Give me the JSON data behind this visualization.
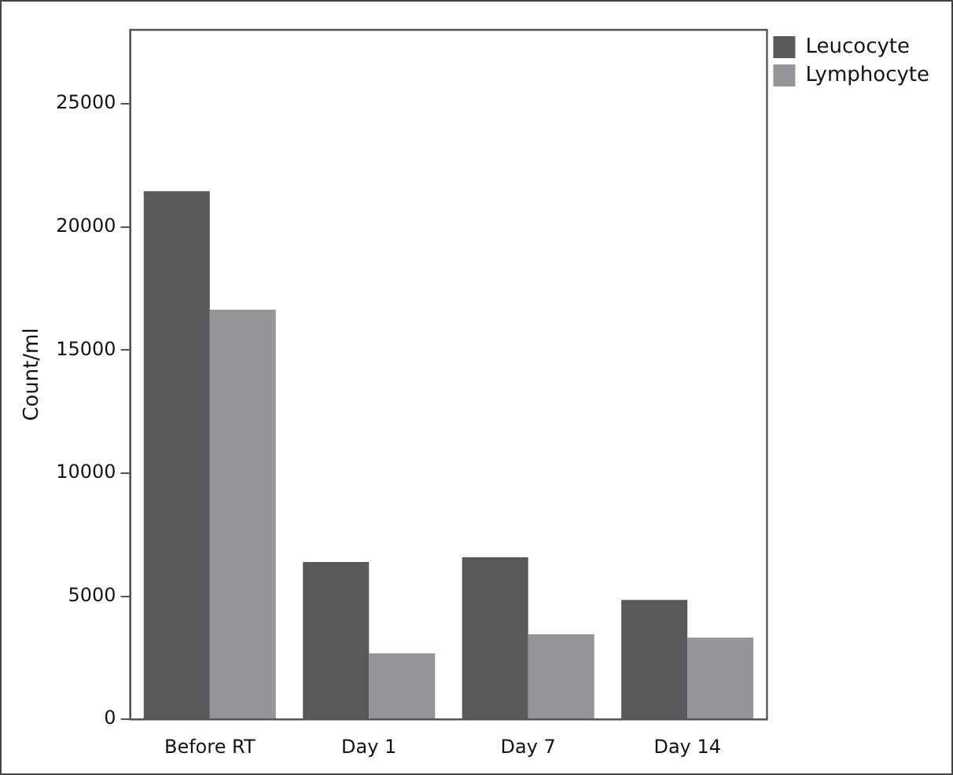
{
  "chart_data": {
    "type": "bar",
    "ylabel": "Count/ml",
    "categories": [
      "Before RT",
      "Day 1",
      "Day 7",
      "Day 14"
    ],
    "series": [
      {
        "name": "Leucocyte",
        "color": "#58595b",
        "values": [
          21450,
          6390,
          6580,
          4850
        ]
      },
      {
        "name": "Lymphocyte",
        "color": "#939598",
        "values": [
          16640,
          2680,
          3450,
          3320
        ]
      }
    ],
    "ylim": [
      0,
      28000
    ],
    "yticks": [
      0,
      5000,
      10000,
      15000,
      20000,
      25000
    ],
    "grid": false,
    "legend": "top right"
  }
}
